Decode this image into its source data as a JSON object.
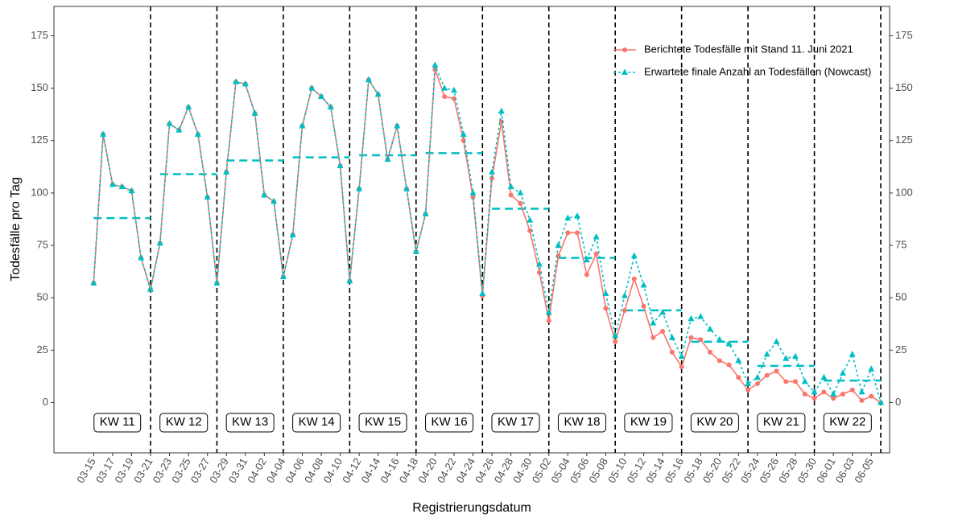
{
  "chart_data": {
    "type": "line",
    "y_label": "Todesfälle pro Tag",
    "x_label": "Registrierungsdatum",
    "categories": [
      "03-15",
      null,
      "03-17",
      null,
      "03-19",
      null,
      "03-21",
      null,
      "03-23",
      null,
      "03-25",
      null,
      "03-27",
      null,
      "03-29",
      null,
      "03-31",
      null,
      "04-02",
      null,
      "04-04",
      null,
      "04-06",
      null,
      "04-08",
      null,
      "04-10",
      null,
      "04-12",
      null,
      "04-14",
      null,
      "04-16",
      null,
      "04-18",
      null,
      "04-20",
      null,
      "04-22",
      null,
      "04-24",
      null,
      "04-26",
      null,
      "04-28",
      null,
      "04-30",
      null,
      "05-02",
      null,
      "05-04",
      null,
      "05-06",
      null,
      "05-08",
      null,
      "05-10",
      null,
      "05-12",
      null,
      "05-14",
      null,
      "05-16",
      null,
      "05-18",
      null,
      "05-20",
      null,
      "05-22",
      null,
      "05-24",
      null,
      "05-26",
      null,
      "05-28",
      null,
      "05-30",
      null,
      "06-01",
      null,
      "06-03",
      null,
      "06-05",
      null
    ],
    "series": [
      {
        "name": "Berichtete Todesfälle mit Stand 11. Juni 2021",
        "color": "#F8766D",
        "marker": "circle",
        "dash": "solid",
        "values": [
          57,
          128,
          104,
          103,
          101,
          69,
          54,
          76,
          133,
          130,
          141,
          128,
          98,
          57,
          110,
          153,
          152,
          138,
          99,
          96,
          60,
          80,
          132,
          150,
          146,
          141,
          113,
          58,
          102,
          154,
          147,
          116,
          132,
          102,
          72,
          90,
          159,
          146,
          145,
          125,
          98,
          51,
          107,
          134,
          99,
          95,
          82,
          62,
          39,
          70,
          81,
          81,
          61,
          71,
          45,
          29,
          44,
          59,
          46,
          31,
          34,
          24,
          17,
          31,
          30,
          24,
          20,
          18,
          12,
          6,
          9,
          13,
          15,
          10,
          10,
          4,
          2,
          5,
          2,
          4,
          6,
          1,
          3,
          0
        ]
      },
      {
        "name": "Erwartete finale Anzahl an Todesfällen (Nowcast)",
        "color": "#00BFC4",
        "marker": "triangle",
        "dash": "dotted",
        "values": [
          57,
          128,
          104,
          103,
          101,
          69,
          54,
          76,
          133,
          130,
          141,
          128,
          98,
          57,
          110,
          153,
          152,
          138,
          99,
          96,
          60,
          80,
          132,
          150,
          146,
          141,
          113,
          58,
          102,
          154,
          147,
          116,
          132,
          102,
          72,
          90,
          161,
          150,
          149,
          128,
          100,
          52,
          110,
          139,
          103,
          100,
          87,
          66,
          43,
          75,
          88,
          89,
          68,
          79,
          52,
          32,
          51,
          70,
          56,
          38,
          43,
          31,
          22,
          40,
          41,
          35,
          30,
          28,
          20,
          9,
          12,
          23,
          29,
          21,
          22,
          10,
          5,
          12,
          4,
          14,
          23,
          5,
          16,
          0
        ]
      }
    ],
    "week_labels": [
      "KW 11",
      "KW 12",
      "KW 13",
      "KW 14",
      "KW 15",
      "KW 16",
      "KW 17",
      "KW 18",
      "KW 19",
      "KW 20",
      "KW 21",
      "KW 22"
    ],
    "week_means": [
      88,
      109,
      115.5,
      117,
      118,
      119,
      92.5,
      69,
      44,
      29,
      17.5,
      10.5
    ],
    "week_mean_color": "#00BFC4",
    "ylim": [
      -24,
      189
    ],
    "yticks": [
      0,
      25,
      50,
      75,
      100,
      125,
      150,
      175
    ],
    "y2lim": [
      -24,
      189
    ],
    "y2ticks": [
      0,
      25,
      50,
      75,
      100,
      125,
      150,
      175
    ],
    "grid": false,
    "legend_position": "top-right"
  }
}
